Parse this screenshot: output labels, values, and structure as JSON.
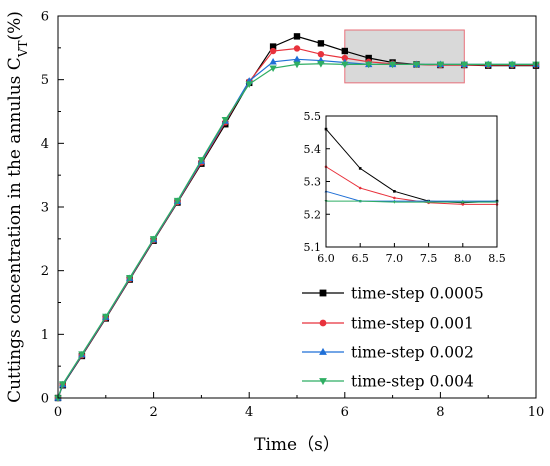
{
  "chart_data": {
    "type": "line",
    "xlabel": "Time（s）",
    "ylabel_main": "Cuttings concentration in the annulus C",
    "ylabel_sub": "VT",
    "ylabel_unit": "(%)",
    "xlim": [
      0,
      10
    ],
    "ylim": [
      0,
      6
    ],
    "xticks": [
      "0",
      "2",
      "4",
      "6",
      "8",
      "10"
    ],
    "yticks": [
      "0",
      "1",
      "2",
      "3",
      "4",
      "5",
      "6"
    ],
    "grid": false,
    "legend_position": "lower-right",
    "zoom_box": {
      "x": [
        6.0,
        8.5
      ],
      "y": [
        4.95,
        5.78
      ],
      "color": "#d9d9d9",
      "border": "#e8707a"
    },
    "series": [
      {
        "name": "time-step 0.0005",
        "color": "#000000",
        "marker": "square",
        "x": [
          0,
          0.1,
          0.5,
          1,
          1.5,
          2,
          2.5,
          3,
          3.5,
          4,
          4.5,
          5,
          5.5,
          6,
          6.5,
          7,
          7.5,
          8,
          8.5,
          9,
          9.5,
          10
        ],
        "y": [
          0,
          0.2,
          0.66,
          1.25,
          1.86,
          2.47,
          3.07,
          3.68,
          4.3,
          4.95,
          5.52,
          5.68,
          5.57,
          5.45,
          5.34,
          5.27,
          5.24,
          5.23,
          5.23,
          5.22,
          5.22,
          5.22
        ]
      },
      {
        "name": "time-step 0.001",
        "color": "#e8323c",
        "marker": "circle",
        "x": [
          0,
          0.1,
          0.5,
          1,
          1.5,
          2,
          2.5,
          3,
          3.5,
          4,
          4.5,
          5,
          5.5,
          6,
          6.5,
          7,
          7.5,
          8,
          8.5,
          9,
          9.5,
          10
        ],
        "y": [
          0,
          0.21,
          0.67,
          1.26,
          1.87,
          2.48,
          3.08,
          3.7,
          4.33,
          4.97,
          5.45,
          5.49,
          5.4,
          5.34,
          5.28,
          5.25,
          5.24,
          5.23,
          5.23,
          5.23,
          5.23,
          5.23
        ]
      },
      {
        "name": "time-step 0.002",
        "color": "#1f6fd6",
        "marker": "triangle-up",
        "x": [
          0,
          0.1,
          0.5,
          1,
          1.5,
          2,
          2.5,
          3,
          3.5,
          4,
          4.5,
          5,
          5.5,
          6,
          6.5,
          7,
          7.5,
          8,
          8.5,
          9,
          9.5,
          10
        ],
        "y": [
          0,
          0.21,
          0.68,
          1.27,
          1.88,
          2.49,
          3.09,
          3.72,
          4.35,
          4.98,
          5.28,
          5.32,
          5.3,
          5.27,
          5.24,
          5.24,
          5.24,
          5.24,
          5.24,
          5.24,
          5.24,
          5.24
        ]
      },
      {
        "name": "time-step 0.004",
        "color": "#2fae63",
        "marker": "triangle-down",
        "x": [
          0,
          0.1,
          0.5,
          1,
          1.5,
          2,
          2.5,
          3,
          3.5,
          4,
          4.5,
          5,
          5.5,
          6,
          6.5,
          7,
          7.5,
          8,
          8.5,
          9,
          9.5,
          10
        ],
        "y": [
          0,
          0.22,
          0.69,
          1.28,
          1.89,
          2.5,
          3.1,
          3.74,
          4.37,
          4.93,
          5.18,
          5.24,
          5.25,
          5.24,
          5.24,
          5.24,
          5.24,
          5.24,
          5.24,
          5.24,
          5.24,
          5.24
        ]
      }
    ],
    "inset": {
      "xlim": [
        6.0,
        8.5
      ],
      "ylim": [
        5.1,
        5.5
      ],
      "xticks": [
        "6.0",
        "6.5",
        "7.0",
        "7.5",
        "8.0",
        "8.5"
      ],
      "yticks": [
        "5.1",
        "5.2",
        "5.3",
        "5.4",
        "5.5"
      ],
      "series": [
        {
          "name": "time-step 0.0005",
          "x": [
            6.0,
            6.5,
            7.0,
            7.5,
            8.0,
            8.5
          ],
          "y": [
            5.46,
            5.34,
            5.27,
            5.24,
            5.235,
            5.24
          ]
        },
        {
          "name": "time-step 0.001",
          "x": [
            6.0,
            6.5,
            7.0,
            7.5,
            8.0,
            8.5
          ],
          "y": [
            5.345,
            5.28,
            5.25,
            5.235,
            5.23,
            5.23
          ]
        },
        {
          "name": "time-step 0.002",
          "x": [
            6.0,
            6.5,
            7.0,
            7.5,
            8.0,
            8.5
          ],
          "y": [
            5.27,
            5.24,
            5.24,
            5.24,
            5.24,
            5.24
          ]
        },
        {
          "name": "time-step 0.004",
          "x": [
            6.0,
            6.5,
            7.0,
            7.5,
            8.0,
            8.5
          ],
          "y": [
            5.24,
            5.24,
            5.237,
            5.237,
            5.237,
            5.237
          ]
        }
      ]
    }
  }
}
